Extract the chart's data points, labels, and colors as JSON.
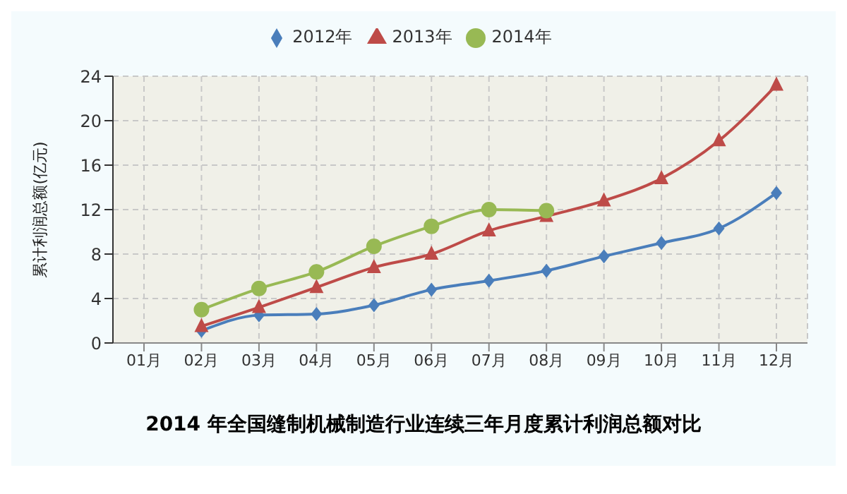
{
  "chart_data": {
    "type": "line",
    "title": "2014 年全国缝制机械制造行业连续三年月度累计利润总额对比",
    "ylabel": "累计利润总额(亿元)",
    "categories": [
      "01月",
      "02月",
      "03月",
      "04月",
      "05月",
      "06月",
      "07月",
      "08月",
      "09月",
      "10月",
      "11月",
      "12月"
    ],
    "series": [
      {
        "name": "2012年",
        "color": "#4a7ebb",
        "marker": "diamond",
        "values": [
          null,
          1.1,
          2.5,
          2.6,
          3.4,
          4.8,
          5.6,
          6.5,
          7.8,
          9.0,
          10.3,
          13.5
        ]
      },
      {
        "name": "2013年",
        "color": "#be4b48",
        "marker": "triangle",
        "values": [
          null,
          1.5,
          3.2,
          5.0,
          6.8,
          8.0,
          10.1,
          11.4,
          12.8,
          14.8,
          18.2,
          23.2
        ]
      },
      {
        "name": "2014年",
        "color": "#98b954",
        "marker": "circle",
        "values": [
          null,
          3.0,
          4.9,
          6.4,
          8.7,
          10.5,
          12.0,
          11.9,
          null,
          null,
          null,
          null
        ]
      }
    ],
    "ylim": [
      0,
      24
    ],
    "yticks": [
      0,
      4,
      8,
      12,
      16,
      20,
      24
    ],
    "grid": true,
    "legend": "top",
    "line_style": "solid"
  }
}
